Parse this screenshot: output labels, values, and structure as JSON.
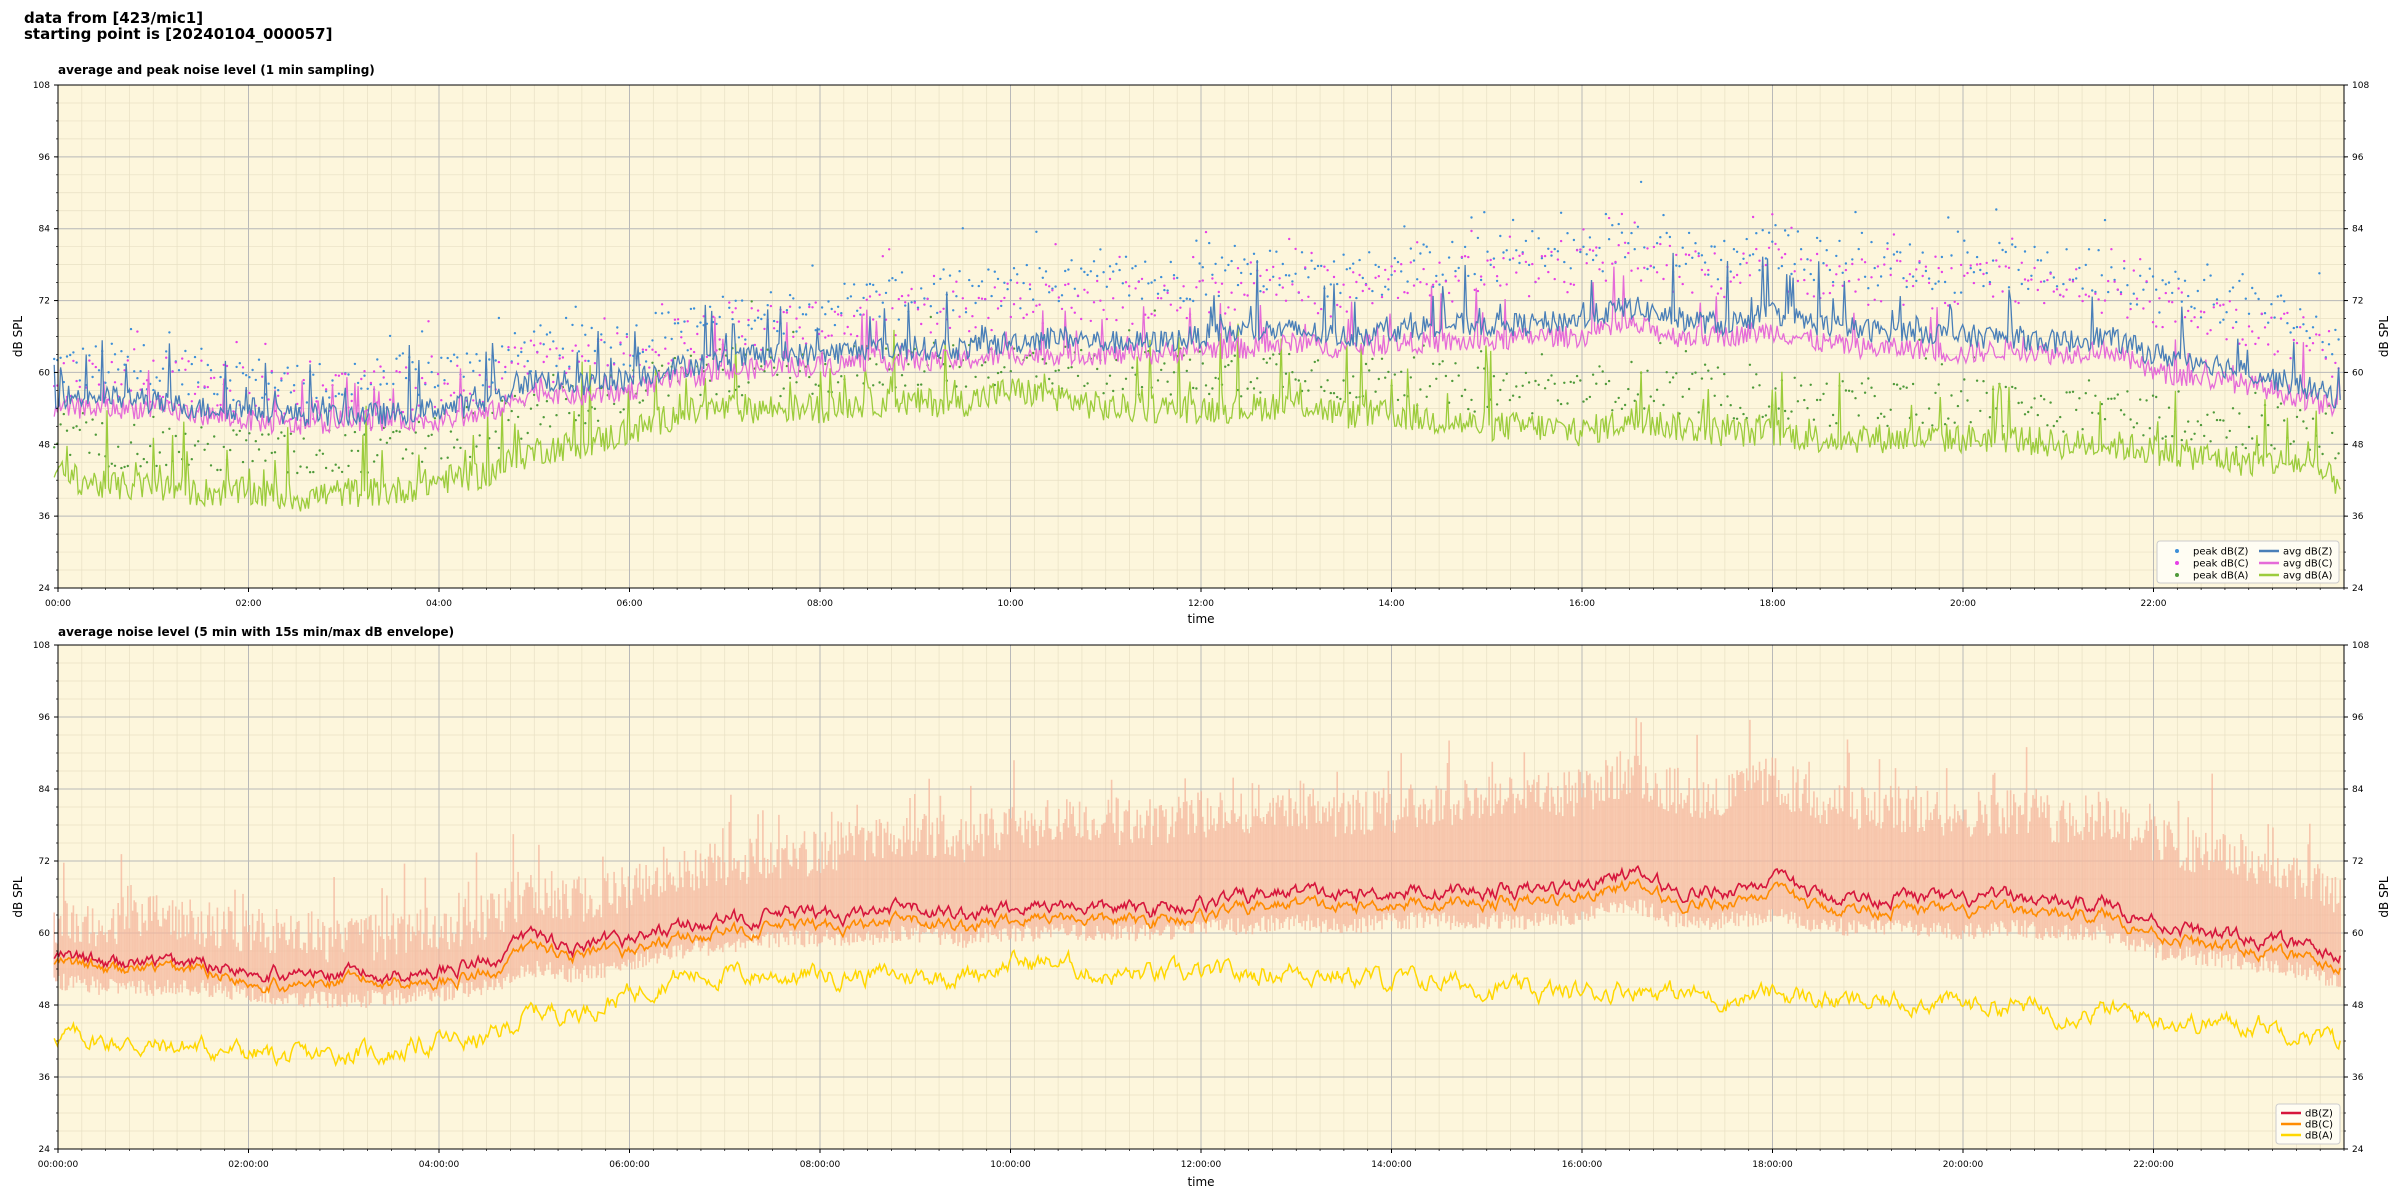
{
  "header": {
    "line1": "data from [423/mic1]",
    "line2": "starting point is [20240104_000057]"
  },
  "colors": {
    "background": "#fdf6dc",
    "grid_major": "#b9b9b9",
    "grid_minor": "#e8e0c4",
    "zpeak": "#3d8fd8",
    "cpeak": "#e640e6",
    "apeak": "#4f9a3a",
    "zavg": "#4a7fb8",
    "cavg": "#e56bd8",
    "aavg": "#9ccc3c",
    "z5": "#d6163c",
    "c5": "#ff8c00",
    "a5": "#ffd700",
    "envelope": "#f4b69c"
  },
  "chart_data": [
    {
      "type": "line",
      "title": "average and peak noise level (1 min sampling)",
      "xlabel": "time",
      "ylabel": "dB SPL",
      "ylim": [
        24,
        108
      ],
      "xlim": [
        0,
        24
      ],
      "yticks": [
        "24",
        "36",
        "48",
        "60",
        "72",
        "84",
        "96",
        "108"
      ],
      "xticks": [
        "00:00",
        "02:00",
        "04:00",
        "06:00",
        "08:00",
        "10:00",
        "12:00",
        "14:00",
        "16:00",
        "18:00",
        "20:00",
        "22:00"
      ],
      "grid": true,
      "legend_position": "bottom-right",
      "legend": [
        "peak dB(Z)",
        "peak dB(C)",
        "peak dB(A)",
        "avg dB(Z)",
        "avg dB(C)",
        "avg dB(A)"
      ],
      "x": [
        0,
        0.5,
        1,
        1.5,
        2,
        2.5,
        3,
        3.5,
        4,
        4.5,
        5,
        5.5,
        6,
        6.5,
        7,
        7.5,
        8,
        8.5,
        9,
        9.5,
        10,
        10.5,
        11,
        11.5,
        12,
        12.5,
        13,
        13.5,
        14,
        14.5,
        15,
        15.5,
        16,
        16.5,
        17,
        17.5,
        18,
        18.5,
        19,
        19.5,
        20,
        20.5,
        21,
        21.5,
        22,
        22.5,
        23,
        23.5,
        23.9
      ],
      "series": [
        {
          "name": "avg dB(Z)",
          "values": [
            56,
            56,
            55,
            54,
            54,
            53,
            53,
            53,
            54,
            55,
            59,
            58,
            59,
            61,
            62,
            63,
            63,
            64,
            64,
            64,
            65,
            66,
            65,
            65,
            66,
            67,
            67,
            66,
            67,
            68,
            68,
            68,
            69,
            71,
            69,
            68,
            70,
            68,
            67,
            67,
            66,
            66,
            65,
            66,
            63,
            62,
            60,
            58,
            56
          ]
        },
        {
          "name": "avg dB(C)",
          "values": [
            54,
            54,
            54,
            53,
            52,
            51,
            52,
            52,
            52,
            53,
            57,
            56,
            57,
            59,
            60,
            61,
            61,
            62,
            62,
            62,
            63,
            63,
            63,
            63,
            64,
            64,
            65,
            64,
            65,
            65,
            65,
            66,
            66,
            68,
            66,
            66,
            67,
            65,
            64,
            64,
            63,
            64,
            63,
            64,
            60,
            59,
            58,
            56,
            54
          ]
        },
        {
          "name": "avg dB(A)",
          "values": [
            43,
            41,
            41,
            40,
            40,
            39,
            40,
            40,
            42,
            43,
            47,
            48,
            50,
            53,
            54,
            54,
            54,
            55,
            55,
            55,
            57,
            56,
            54,
            54,
            54,
            54,
            55,
            53,
            53,
            52,
            51,
            51,
            50,
            52,
            51,
            50,
            50,
            49,
            49,
            49,
            49,
            49,
            48,
            48,
            47,
            46,
            45,
            45,
            42
          ]
        },
        {
          "name": "peak dB(Z)",
          "values": [
            61,
            61,
            61,
            60,
            59,
            58,
            58,
            59,
            60,
            61,
            64,
            64,
            65,
            67,
            69,
            70,
            71,
            72,
            73,
            73,
            74,
            75,
            75,
            75,
            76,
            77,
            77,
            76,
            77,
            78,
            79,
            79,
            80,
            82,
            80,
            79,
            81,
            79,
            78,
            78,
            77,
            78,
            76,
            77,
            74,
            73,
            71,
            69,
            65
          ]
        },
        {
          "name": "peak dB(C)",
          "values": [
            59,
            59,
            59,
            58,
            57,
            56,
            56,
            57,
            58,
            59,
            62,
            62,
            63,
            65,
            67,
            68,
            69,
            70,
            70,
            70,
            71,
            72,
            72,
            72,
            73,
            74,
            74,
            73,
            74,
            75,
            76,
            76,
            77,
            79,
            77,
            76,
            78,
            76,
            75,
            75,
            74,
            75,
            73,
            74,
            71,
            70,
            68,
            66,
            63
          ]
        },
        {
          "name": "peak dB(A)",
          "values": [
            50,
            48,
            48,
            47,
            47,
            46,
            47,
            47,
            49,
            50,
            54,
            55,
            57,
            59,
            60,
            60,
            60,
            61,
            61,
            61,
            62,
            61,
            60,
            60,
            60,
            60,
            61,
            59,
            59,
            58,
            57,
            57,
            57,
            58,
            57,
            56,
            56,
            55,
            55,
            55,
            55,
            55,
            54,
            54,
            53,
            52,
            51,
            51,
            49
          ]
        }
      ]
    },
    {
      "type": "line",
      "title": "average noise level (5 min with 15s min/max dB envelope)",
      "xlabel": "time",
      "ylabel": "dB SPL",
      "ylim": [
        24,
        108
      ],
      "xlim": [
        0,
        24
      ],
      "yticks": [
        "24",
        "36",
        "48",
        "60",
        "72",
        "84",
        "96",
        "108"
      ],
      "xticks": [
        "00:00:00",
        "02:00:00",
        "04:00:00",
        "06:00:00",
        "08:00:00",
        "10:00:00",
        "12:00:00",
        "14:00:00",
        "16:00:00",
        "18:00:00",
        "20:00:00",
        "22:00:00"
      ],
      "grid": true,
      "legend_position": "bottom-right",
      "legend": [
        "dB(Z)",
        "dB(C)",
        "dB(A)"
      ],
      "x": [
        0,
        0.5,
        1,
        1.5,
        2,
        2.5,
        3,
        3.5,
        4,
        4.5,
        5,
        5.5,
        6,
        6.5,
        7,
        7.5,
        8,
        8.5,
        9,
        9.5,
        10,
        10.5,
        11,
        11.5,
        12,
        12.5,
        13,
        13.5,
        14,
        14.5,
        15,
        15.5,
        16,
        16.5,
        17,
        17.5,
        18,
        18.5,
        19,
        19.5,
        20,
        20.5,
        21,
        21.5,
        22,
        22.5,
        23,
        23.5,
        23.9
      ],
      "series": [
        {
          "name": "dB(Z)",
          "values": [
            56,
            55,
            55,
            55,
            54,
            53,
            53,
            53,
            54,
            55,
            60,
            57,
            59,
            61,
            62,
            63,
            63,
            63,
            64,
            63,
            64,
            65,
            64,
            64,
            65,
            66,
            67,
            66,
            67,
            67,
            67,
            67,
            68,
            70,
            67,
            67,
            69,
            66,
            66,
            66,
            65,
            66,
            65,
            65,
            62,
            60,
            59,
            58,
            56
          ]
        },
        {
          "name": "dB(C)",
          "values": [
            55,
            54,
            54,
            54,
            52,
            51,
            52,
            52,
            52,
            53,
            58,
            56,
            57,
            59,
            60,
            61,
            61,
            61,
            62,
            61,
            62,
            63,
            62,
            62,
            63,
            64,
            65,
            64,
            65,
            65,
            65,
            65,
            66,
            68,
            65,
            65,
            67,
            64,
            64,
            64,
            63,
            64,
            63,
            63,
            60,
            58,
            57,
            56,
            54
          ]
        },
        {
          "name": "dB(A)",
          "values": [
            43,
            42,
            41,
            41,
            40,
            39,
            40,
            40,
            42,
            42,
            47,
            47,
            50,
            53,
            53,
            53,
            53,
            53,
            53,
            53,
            55,
            55,
            53,
            53,
            53,
            53,
            54,
            53,
            52,
            52,
            51,
            50,
            50,
            51,
            50,
            49,
            50,
            49,
            48,
            49,
            48,
            48,
            47,
            47,
            46,
            45,
            45,
            44,
            42
          ]
        },
        {
          "name": "",
          "values": [
            60,
            60,
            61,
            60,
            59,
            58,
            57,
            58,
            59,
            61,
            65,
            64,
            66,
            68,
            70,
            71,
            72,
            74,
            75,
            74,
            76,
            77,
            77,
            77,
            78,
            79,
            80,
            78,
            79,
            80,
            81,
            81,
            82,
            85,
            82,
            81,
            84,
            80,
            79,
            79,
            78,
            79,
            77,
            78,
            74,
            72,
            70,
            68,
            64
          ]
        },
        {
          "name": "",
          "values": [
            52,
            51,
            51,
            51,
            50,
            49,
            49,
            49,
            50,
            51,
            54,
            53,
            55,
            57,
            58,
            59,
            59,
            59,
            60,
            59,
            60,
            60,
            60,
            60,
            61,
            61,
            62,
            61,
            62,
            62,
            62,
            62,
            63,
            65,
            62,
            62,
            63,
            61,
            61,
            61,
            60,
            61,
            60,
            60,
            57,
            56,
            55,
            54,
            52
          ]
        }
      ]
    }
  ]
}
